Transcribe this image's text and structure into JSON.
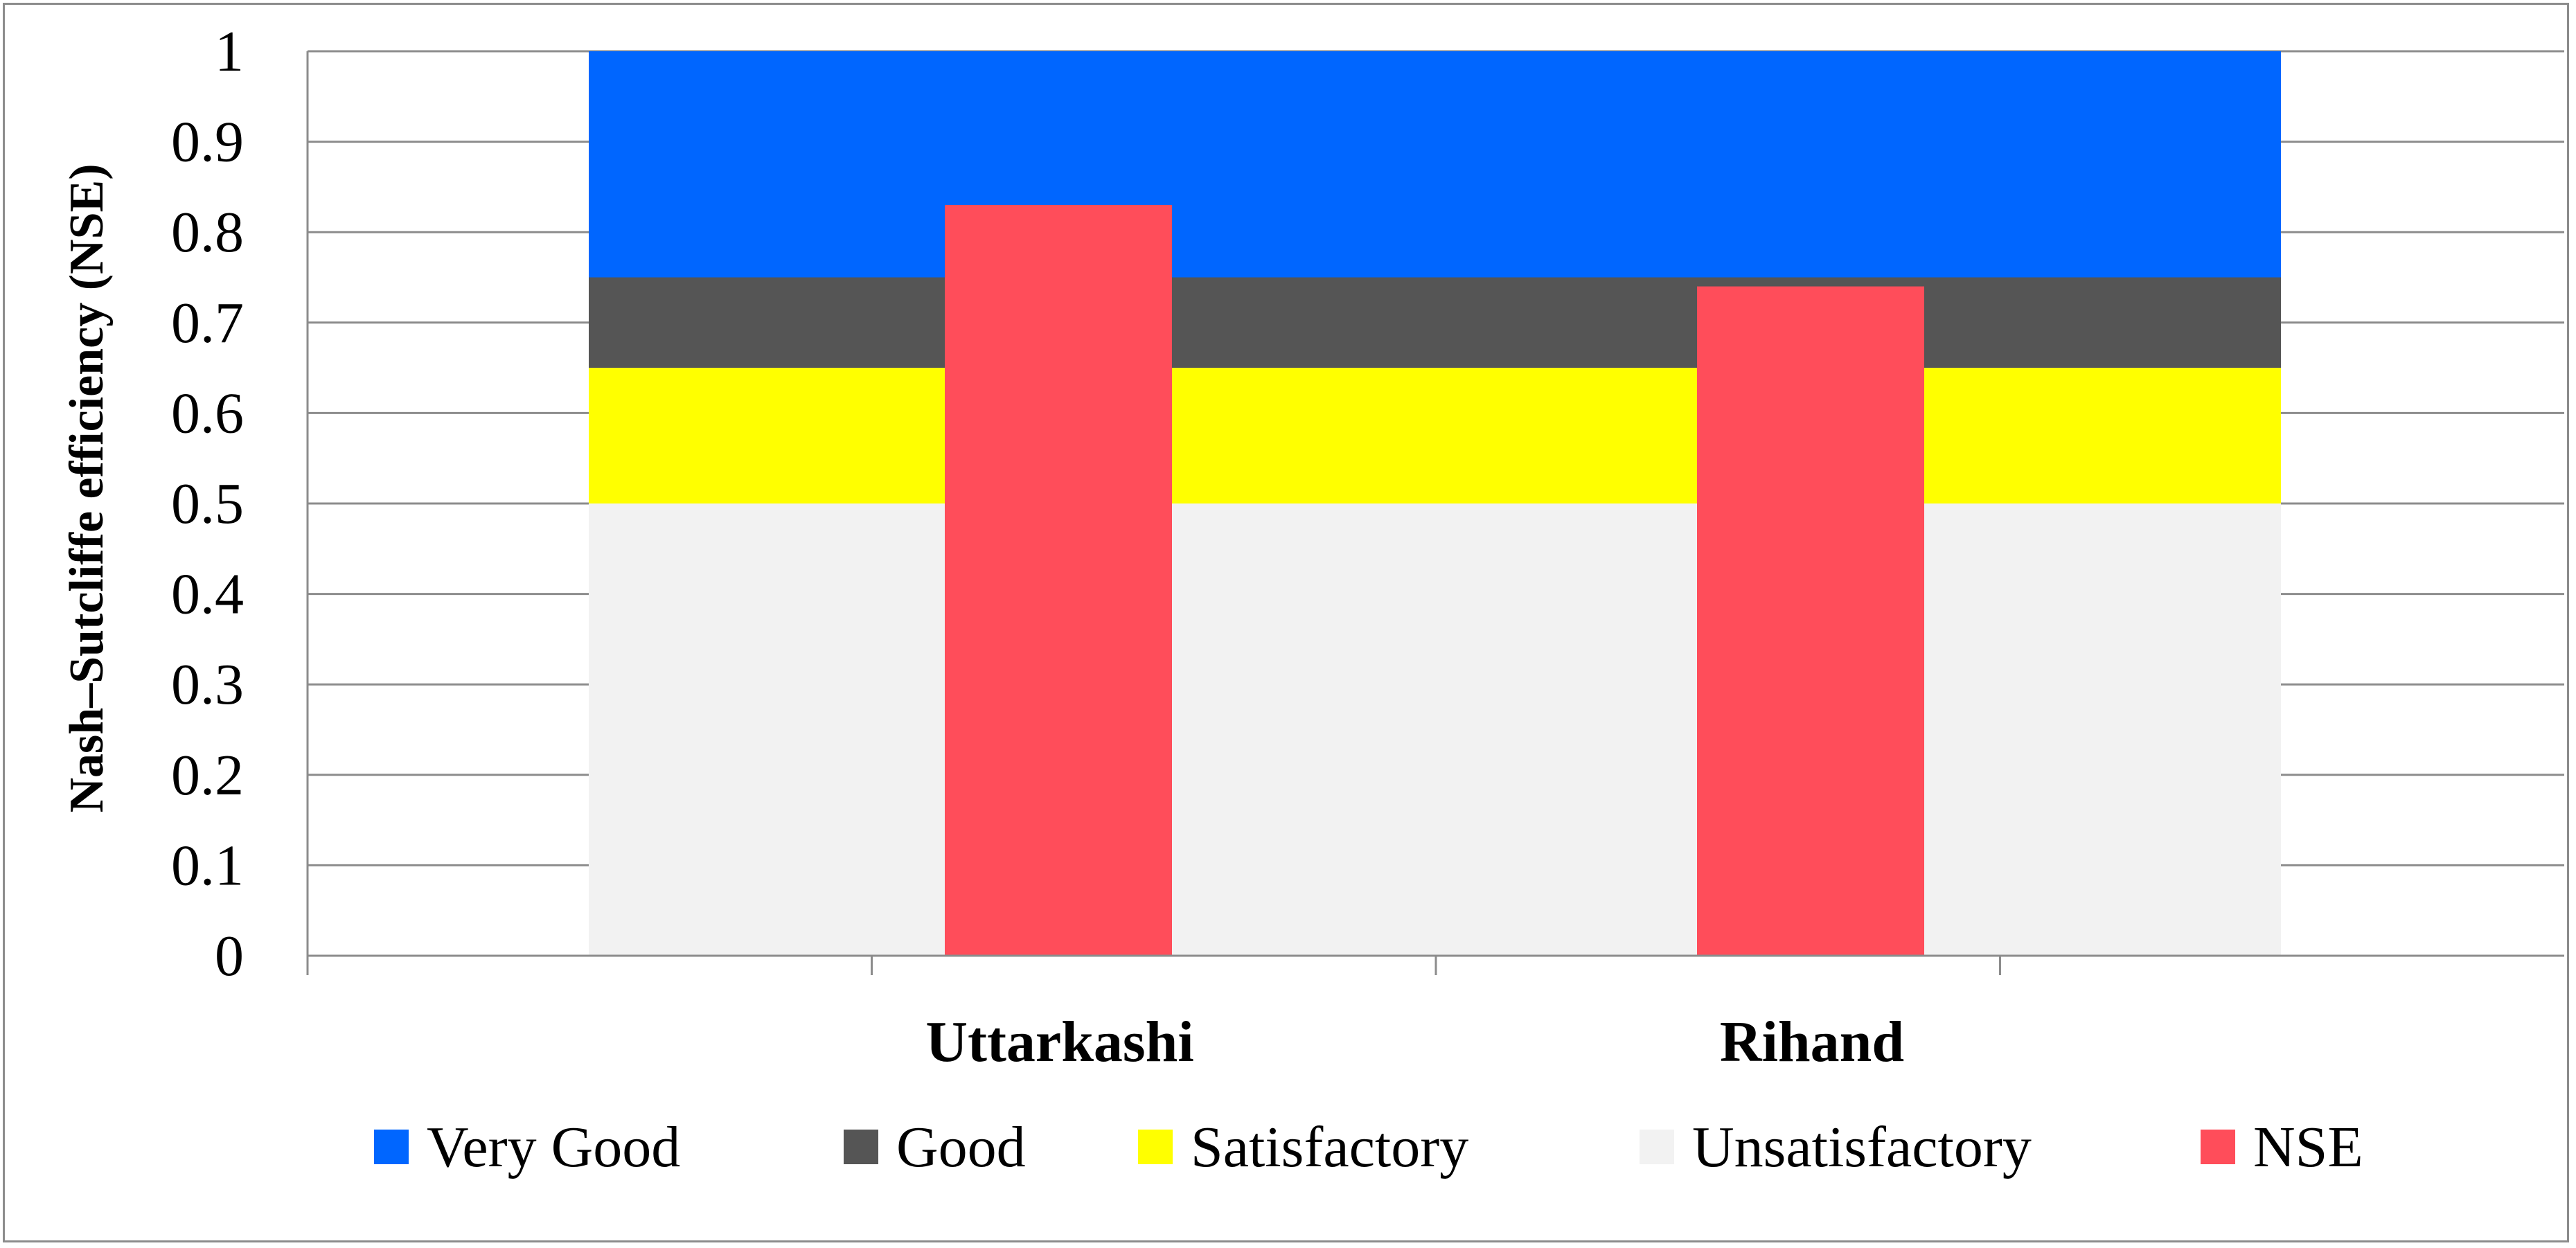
{
  "chart_data": {
    "type": "bar",
    "title": "",
    "ylabel": "Nash–Sutcliffe efficiency (NSE)",
    "xlabel": "",
    "ylim": [
      0,
      1
    ],
    "yticks": [
      "0",
      "0.1",
      "0.2",
      "0.3",
      "0.4",
      "0.5",
      "0.6",
      "0.7",
      "0.8",
      "0.9",
      "1"
    ],
    "grid": true,
    "legend_position": "bottom",
    "categories": [
      "Uttarkashi",
      "Rihand"
    ],
    "performance_bands": [
      {
        "name": "Unsatisfactory",
        "from": 0,
        "to": 0.5,
        "color": "#f2f2f2"
      },
      {
        "name": "Satisfactory",
        "from": 0.5,
        "to": 0.65,
        "color": "#ffff00"
      },
      {
        "name": "Good",
        "from": 0.65,
        "to": 0.75,
        "color": "#555555"
      },
      {
        "name": "Very Good",
        "from": 0.75,
        "to": 1.0,
        "color": "#0066ff"
      }
    ],
    "series": [
      {
        "name": "NSE",
        "values": [
          0.83,
          0.74
        ],
        "color": "#ff4d5a"
      }
    ],
    "legend": [
      {
        "label": "Very Good",
        "color": "#0066ff"
      },
      {
        "label": "Good",
        "color": "#555555"
      },
      {
        "label": "Satisfactory",
        "color": "#ffff00"
      },
      {
        "label": "Unsatisfactory",
        "color": "#f2f2f2"
      },
      {
        "label": "NSE",
        "color": "#ff4d5a"
      }
    ]
  }
}
